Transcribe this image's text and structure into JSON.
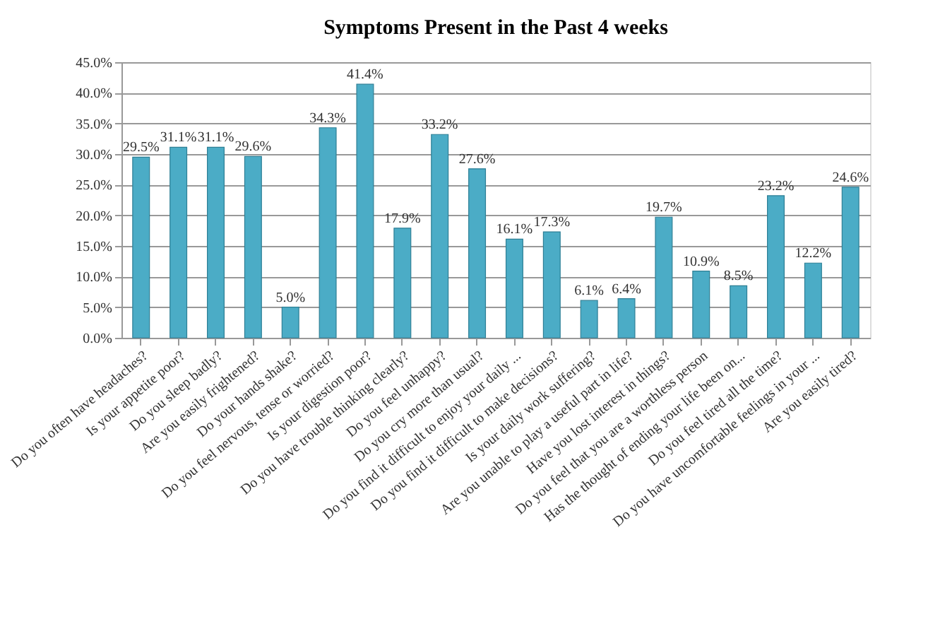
{
  "chart_data": {
    "type": "bar",
    "title": "Symptoms Present in the Past 4 weeks",
    "categories": [
      "Do you often have headaches?",
      "Is your appetite  poor?",
      "Do you sleep badly?",
      "Are you easily frightened?",
      "Do your hands  shake?",
      "Do you feel  nervous, tense or worried?",
      "Is your digestion poor?",
      "Do you have trouble thinking clearly?",
      "Do you feel  unhappy?",
      "Do you cry more than  usual?",
      "Do you find it difficult to enjoy your daily ...",
      "Do you find it difficult to make decisions?",
      "Is your daily work suffering?",
      "Are you unable to play a useful part in life?",
      "Have you lost interest in things?",
      "Do you feel that you are a worthless  person",
      "Has the thought of ending your life been on...",
      "Do you feel tired all the time?",
      "Do you have uncomfortable  feelings in your ...",
      "Are you easily tired?"
    ],
    "values": [
      29.5,
      31.1,
      31.1,
      29.6,
      5.0,
      34.3,
      41.4,
      17.9,
      33.2,
      27.6,
      16.1,
      17.3,
      6.1,
      6.4,
      19.7,
      10.9,
      8.5,
      23.2,
      12.2,
      24.6
    ],
    "value_labels": [
      "29.5%",
      "31.1%",
      "31.1%",
      "29.6%",
      "5.0%",
      "34.3%",
      "41.4%",
      "17.9%",
      "33.2%",
      "27.6%",
      "16.1%",
      "17.3%",
      "6.1%",
      "6.4%",
      "19.7%",
      "10.9%",
      "8.5%",
      "23.2%",
      "12.2%",
      "24.6%"
    ],
    "color": "#4bacc6",
    "ylim": [
      0,
      45
    ],
    "yticks": [
      {
        "value": 0,
        "label": "0.0%"
      },
      {
        "value": 5,
        "label": "5.0%"
      },
      {
        "value": 10,
        "label": "10.0%"
      },
      {
        "value": 15,
        "label": "15.0%"
      },
      {
        "value": 20,
        "label": "20.0%"
      },
      {
        "value": 25,
        "label": "25.0%"
      },
      {
        "value": 30,
        "label": "30.0%"
      },
      {
        "value": 35,
        "label": "35.0%"
      },
      {
        "value": 40,
        "label": "40.0%"
      },
      {
        "value": 45,
        "label": "45.0%"
      }
    ],
    "grid": "y"
  }
}
